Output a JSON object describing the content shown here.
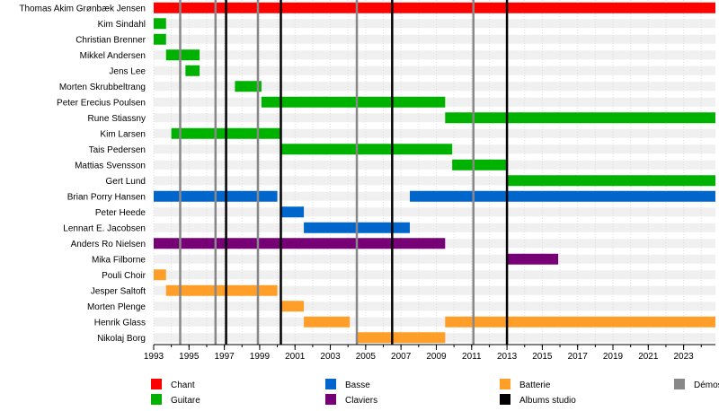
{
  "chart_data": {
    "type": "timeline",
    "x_range": [
      1993,
      2024.8
    ],
    "tick_labels": [
      "1993",
      "1995",
      "1997",
      "1999",
      "2001",
      "2003",
      "2005",
      "2007",
      "2009",
      "2011",
      "2013",
      "2015",
      "2017",
      "2019",
      "2021",
      "2023"
    ],
    "tick_values": [
      1993,
      1995,
      1997,
      1999,
      2001,
      2003,
      2005,
      2007,
      2009,
      2011,
      2013,
      2015,
      2017,
      2019,
      2021,
      2023
    ],
    "grid": true,
    "members": [
      "Thomas Akim Grønbæk Jensen",
      "Kim Sindahl",
      "Christian Brenner",
      "Mikkel Andersen",
      "Jens Lee",
      "Morten Skrubbeltrang",
      "Peter Erecius Poulsen",
      "Rune Stiassny",
      "Kim Larsen",
      "Tais Pedersen",
      "Mattias Svensson",
      "Gert Lund",
      "Brian Porry Hansen",
      "Peter Heede",
      "Lennart E. Jacobsen",
      "Anders Ro Nielsen",
      "Mika Filborne",
      "Pouli Choir",
      "Jesper Saltoft",
      "Morten Plenge",
      "Henrik Glass",
      "Nikolaj Borg"
    ],
    "bars": [
      {
        "member": 0,
        "start": 1993.0,
        "end": 2024.8,
        "role": "chant"
      },
      {
        "member": 1,
        "start": 1993.0,
        "end": 1993.7,
        "role": "guitare"
      },
      {
        "member": 2,
        "start": 1993.0,
        "end": 1993.7,
        "role": "guitare"
      },
      {
        "member": 3,
        "start": 1993.7,
        "end": 1995.6,
        "role": "guitare"
      },
      {
        "member": 4,
        "start": 1994.8,
        "end": 1995.6,
        "role": "guitare"
      },
      {
        "member": 5,
        "start": 1997.6,
        "end": 1999.1,
        "role": "guitare"
      },
      {
        "member": 6,
        "start": 1999.1,
        "end": 2009.5,
        "role": "guitare"
      },
      {
        "member": 7,
        "start": 2009.5,
        "end": 2024.8,
        "role": "guitare"
      },
      {
        "member": 8,
        "start": 1994.0,
        "end": 2000.2,
        "role": "guitare"
      },
      {
        "member": 9,
        "start": 2000.2,
        "end": 2009.9,
        "role": "guitare"
      },
      {
        "member": 10,
        "start": 2009.9,
        "end": 2013.0,
        "role": "guitare"
      },
      {
        "member": 11,
        "start": 2013.0,
        "end": 2024.8,
        "role": "guitare"
      },
      {
        "member": 12,
        "start": 1993.0,
        "end": 2000.0,
        "role": "basse"
      },
      {
        "member": 12,
        "start": 2007.5,
        "end": 2024.8,
        "role": "basse"
      },
      {
        "member": 13,
        "start": 2000.2,
        "end": 2001.5,
        "role": "basse"
      },
      {
        "member": 14,
        "start": 2001.5,
        "end": 2007.5,
        "role": "basse"
      },
      {
        "member": 15,
        "start": 1993.0,
        "end": 2009.5,
        "role": "claviers"
      },
      {
        "member": 16,
        "start": 2013.0,
        "end": 2015.9,
        "role": "claviers"
      },
      {
        "member": 17,
        "start": 1993.0,
        "end": 1993.7,
        "role": "batterie"
      },
      {
        "member": 18,
        "start": 1993.7,
        "end": 2000.0,
        "role": "batterie"
      },
      {
        "member": 19,
        "start": 2000.2,
        "end": 2001.5,
        "role": "batterie"
      },
      {
        "member": 20,
        "start": 2001.5,
        "end": 2004.1,
        "role": "batterie"
      },
      {
        "member": 20,
        "start": 2009.5,
        "end": 2024.8,
        "role": "batterie"
      },
      {
        "member": 21,
        "start": 2004.5,
        "end": 2009.5,
        "role": "batterie"
      }
    ],
    "demos": [
      1994.5,
      1996.5,
      1998.9,
      2004.5,
      2011.1
    ],
    "albums": [
      1997.1,
      2000.2,
      2006.5,
      2013.0
    ],
    "colors": {
      "chant": "#ff0000",
      "guitare": "#00b200",
      "basse": "#0066cc",
      "claviers": "#770077",
      "batterie": "#ff9f2a",
      "demos": "#888888",
      "albums": "#000000",
      "stripe": "#f0f0f0"
    },
    "legend": [
      {
        "label": "Chant",
        "key": "chant"
      },
      {
        "label": "Guitare",
        "key": "guitare"
      },
      {
        "label": "Basse",
        "key": "basse"
      },
      {
        "label": "Claviers",
        "key": "claviers"
      },
      {
        "label": "Batterie",
        "key": "batterie"
      },
      {
        "label": "Albums studio",
        "key": "albums"
      },
      {
        "label": "Démos",
        "key": "demos"
      }
    ]
  }
}
